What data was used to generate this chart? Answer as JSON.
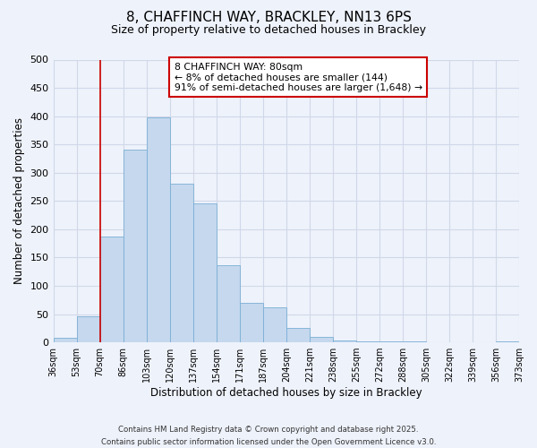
{
  "title": "8, CHAFFINCH WAY, BRACKLEY, NN13 6PS",
  "subtitle": "Size of property relative to detached houses in Brackley",
  "bar_values": [
    8,
    46,
    187,
    340,
    398,
    280,
    246,
    137,
    70,
    62,
    25,
    10,
    3,
    1,
    1,
    1,
    0,
    0,
    0,
    2
  ],
  "bin_labels": [
    "36sqm",
    "53sqm",
    "70sqm",
    "86sqm",
    "103sqm",
    "120sqm",
    "137sqm",
    "154sqm",
    "171sqm",
    "187sqm",
    "204sqm",
    "221sqm",
    "238sqm",
    "255sqm",
    "272sqm",
    "288sqm",
    "305sqm",
    "322sqm",
    "339sqm",
    "356sqm",
    "373sqm"
  ],
  "bar_color": "#c5d8ee",
  "bar_edge_color": "#7aafd4",
  "vline_x": 2,
  "vline_color": "#cc0000",
  "xlabel": "Distribution of detached houses by size in Brackley",
  "ylabel": "Number of detached properties",
  "ylim": [
    0,
    500
  ],
  "yticks": [
    0,
    50,
    100,
    150,
    200,
    250,
    300,
    350,
    400,
    450,
    500
  ],
  "annotation_title": "8 CHAFFINCH WAY: 80sqm",
  "annotation_line1": "← 8% of detached houses are smaller (144)",
  "annotation_line2": "91% of semi-detached houses are larger (1,648) →",
  "annotation_box_color": "white",
  "annotation_box_edge": "#cc0000",
  "footer_line1": "Contains HM Land Registry data © Crown copyright and database right 2025.",
  "footer_line2": "Contains public sector information licensed under the Open Government Licence v3.0.",
  "background_color": "#eef2fb",
  "grid_color": "#d0d8e8"
}
